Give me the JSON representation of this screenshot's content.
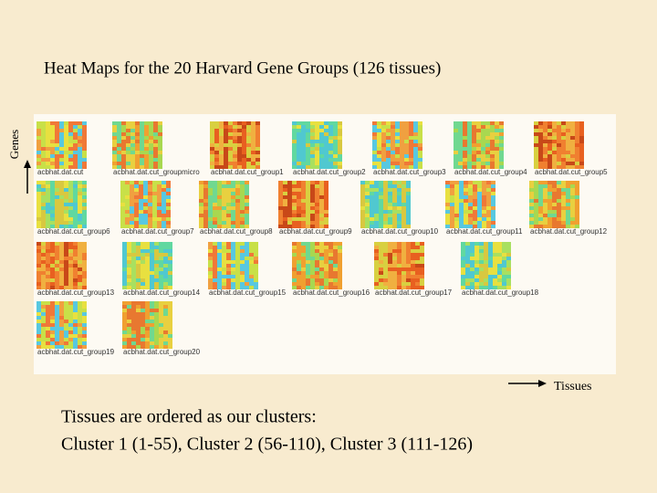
{
  "title": "Heat Maps for the 20 Harvard Gene Groups (126 tissues)",
  "y_axis_label": "Genes",
  "x_axis_label": "Tissues",
  "heatmaps": [
    {
      "label": "acbhat.dat.cut"
    },
    {
      "label": "acbhat.dat.cut_groupmicro"
    },
    {
      "label": "acbhat.dat.cut_group1"
    },
    {
      "label": "acbhat.dat.cut_group2"
    },
    {
      "label": "acbhat.dat.cut_group3"
    },
    {
      "label": "acbhat.dat.cut_group4"
    },
    {
      "label": "acbhat.dat.cut_group5"
    },
    {
      "label": "acbhat.dat.cut_group6"
    },
    {
      "label": "acbhat.dat.cut_group7"
    },
    {
      "label": "acbhat.dat.cut_group8"
    },
    {
      "label": "acbhat.dat.cut_group9"
    },
    {
      "label": "acbhat.dat.cut_group10"
    },
    {
      "label": "acbhat.dat.cut_group11"
    },
    {
      "label": "acbhat.dat.cut_group12"
    },
    {
      "label": "acbhat.dat.cut_group13"
    },
    {
      "label": "acbhat.dat.cut_group14"
    },
    {
      "label": "acbhat.dat.cut_group15"
    },
    {
      "label": "acbhat.dat.cut_group16"
    },
    {
      "label": "acbhat.dat.cut_group17"
    },
    {
      "label": "acbhat.dat.cut_group18"
    },
    {
      "label": "acbhat.dat.cut_group19"
    },
    {
      "label": "acbhat.dat.cut_group20"
    }
  ],
  "caption": {
    "line1": "Tissues are ordered as our clusters:",
    "line2": "Cluster 1 (1-55), Cluster 2 (56-110), Cluster 3 (111-126)"
  }
}
